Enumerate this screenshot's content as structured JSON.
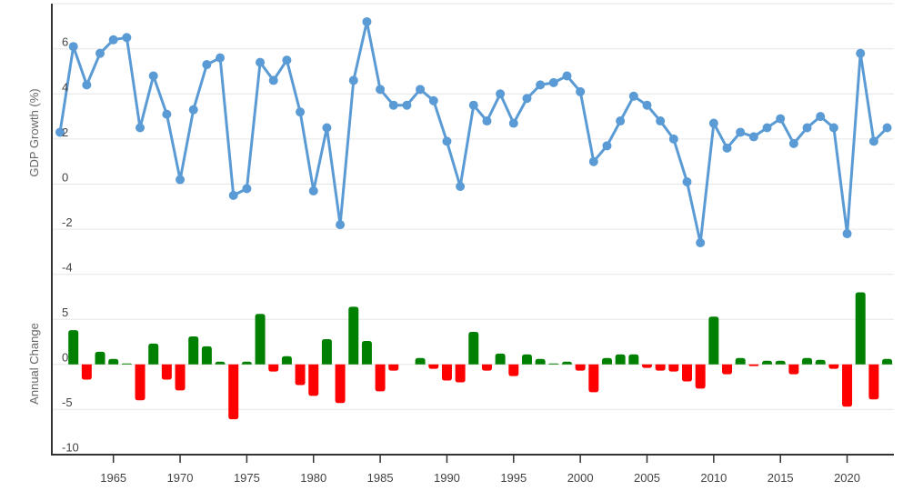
{
  "chart_data": [
    {
      "type": "line",
      "title": "",
      "xlabel": "",
      "ylabel": "GDP Growth (%)",
      "ylim": [
        -5,
        8
      ],
      "yticks": [
        -4,
        -2,
        0,
        2,
        4,
        6
      ],
      "grid": true,
      "legend": null,
      "color": "#5b9bd5",
      "x": [
        1961,
        1962,
        1963,
        1964,
        1965,
        1966,
        1967,
        1968,
        1969,
        1970,
        1971,
        1972,
        1973,
        1974,
        1975,
        1976,
        1977,
        1978,
        1979,
        1980,
        1981,
        1982,
        1983,
        1984,
        1985,
        1986,
        1987,
        1988,
        1989,
        1990,
        1991,
        1992,
        1993,
        1994,
        1995,
        1996,
        1997,
        1998,
        1999,
        2000,
        2001,
        2002,
        2003,
        2004,
        2005,
        2006,
        2007,
        2008,
        2009,
        2010,
        2011,
        2012,
        2013,
        2014,
        2015,
        2016,
        2017,
        2018,
        2019,
        2020,
        2021,
        2022,
        2023
      ],
      "values": [
        2.3,
        6.1,
        4.4,
        5.8,
        6.4,
        6.5,
        2.5,
        4.8,
        3.1,
        0.2,
        3.3,
        5.3,
        5.6,
        -0.5,
        -0.2,
        5.4,
        4.6,
        5.5,
        3.2,
        -0.3,
        2.5,
        -1.8,
        4.6,
        7.2,
        4.2,
        3.5,
        3.5,
        4.2,
        3.7,
        1.9,
        -0.1,
        3.5,
        2.8,
        4.0,
        2.7,
        3.8,
        4.4,
        4.5,
        4.8,
        4.1,
        1.0,
        1.7,
        2.8,
        3.9,
        3.5,
        2.8,
        2.0,
        0.1,
        -2.6,
        2.7,
        1.6,
        2.3,
        2.1,
        2.5,
        2.9,
        1.8,
        2.5,
        3.0,
        2.5,
        -2.2,
        5.8,
        1.9,
        2.5
      ]
    },
    {
      "type": "bar",
      "title": "",
      "xlabel": "",
      "ylabel": "Annual Change",
      "ylim": [
        -10,
        8
      ],
      "yticks": [
        -10,
        -5,
        0,
        5
      ],
      "grid": true,
      "legend": null,
      "positive_color": "#008000",
      "negative_color": "#ff0000",
      "x": [
        1962,
        1963,
        1964,
        1965,
        1966,
        1967,
        1968,
        1969,
        1970,
        1971,
        1972,
        1973,
        1974,
        1975,
        1976,
        1977,
        1978,
        1979,
        1980,
        1981,
        1982,
        1983,
        1984,
        1985,
        1986,
        1987,
        1988,
        1989,
        1990,
        1991,
        1992,
        1993,
        1994,
        1995,
        1996,
        1997,
        1998,
        1999,
        2000,
        2001,
        2002,
        2003,
        2004,
        2005,
        2006,
        2007,
        2008,
        2009,
        2010,
        2011,
        2012,
        2013,
        2014,
        2015,
        2016,
        2017,
        2018,
        2019,
        2020,
        2021,
        2022,
        2023
      ],
      "values": [
        3.8,
        -1.7,
        1.4,
        0.6,
        0.1,
        -4.0,
        2.3,
        -1.7,
        -2.9,
        3.1,
        2.0,
        0.3,
        -6.1,
        0.3,
        5.6,
        -0.8,
        0.9,
        -2.3,
        -3.5,
        2.8,
        -4.3,
        6.4,
        2.6,
        -3.0,
        -0.7,
        0.0,
        0.7,
        -0.5,
        -1.8,
        -2.0,
        3.6,
        -0.7,
        1.2,
        -1.3,
        1.1,
        0.6,
        0.1,
        0.3,
        -0.7,
        -3.1,
        0.7,
        1.1,
        1.1,
        -0.4,
        -0.7,
        -0.8,
        -1.9,
        -2.7,
        5.3,
        -1.1,
        0.7,
        -0.2,
        0.4,
        0.4,
        -1.1,
        0.7,
        0.5,
        -0.5,
        -4.7,
        8.0,
        -3.9,
        0.6
      ]
    }
  ],
  "x_axis": {
    "ticks": [
      1965,
      1970,
      1975,
      1980,
      1985,
      1990,
      1995,
      2000,
      2005,
      2010,
      2015,
      2020
    ]
  },
  "labels": {
    "top_ylabel": "GDP Growth (%)",
    "bottom_ylabel": "Annual Change"
  }
}
